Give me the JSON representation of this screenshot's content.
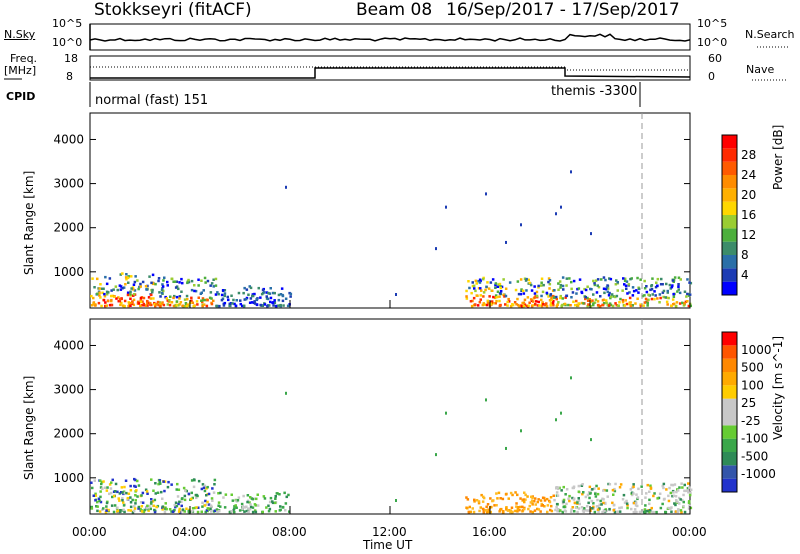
{
  "header": {
    "station": "Stokkseyri (fitACF)",
    "beam": "Beam 08",
    "date_range": "16/Sep/2017 - 17/Sep/2017"
  },
  "top_panels": {
    "nsky_label": "N.Sky",
    "nsky_ticks": [
      "10^5",
      "10^0"
    ],
    "nsearch_label": "N.Search",
    "nsearch_ticks": [
      "10^5",
      "10^0"
    ],
    "freq_label": "Freq.",
    "freq_unit": "[MHz]",
    "freq_ticks": [
      "18",
      "8"
    ],
    "nave_label": "Nave",
    "nave_ticks": [
      "60",
      "0"
    ],
    "cpid_label": "CPID",
    "cpid_modes": [
      {
        "name": "normal (fast) 151",
        "start_hour": 0
      },
      {
        "name": "themis -3300",
        "start_hour": 22
      }
    ]
  },
  "chart_data": [
    {
      "type": "heatmap",
      "title": "",
      "ylabel": "Slant Range [km]",
      "xlabel": "",
      "x_range_hours": [
        0,
        24
      ],
      "ylim": [
        180,
        4600
      ],
      "yticks": [
        1000,
        2000,
        3000,
        4000
      ],
      "colorbar": {
        "label": "Power [dB]",
        "ticks": [
          "4",
          "8",
          "12",
          "16",
          "20",
          "24",
          "28"
        ],
        "colors": [
          "#0000ff",
          "#1c3cb4",
          "#2a6fa8",
          "#3c8c6a",
          "#4caf3c",
          "#9acd32",
          "#ffd700",
          "#ffb000",
          "#ff8c00",
          "#ff5a00",
          "#ff2a00",
          "#ff0000"
        ]
      },
      "scatter_regions": [
        {
          "hours": [
            0,
            2.5
          ],
          "range_km": [
            250,
            1000
          ],
          "level": "mixed-high"
        },
        {
          "hours": [
            2.5,
            5
          ],
          "range_km": [
            250,
            900
          ],
          "level": "mixed"
        },
        {
          "hours": [
            5,
            8
          ],
          "range_km": [
            250,
            700
          ],
          "level": "low"
        },
        {
          "hours": [
            15,
            18.5
          ],
          "range_km": [
            250,
            900
          ],
          "level": "mixed-high"
        },
        {
          "hours": [
            18.5,
            24
          ],
          "range_km": [
            250,
            900
          ],
          "level": "mixed"
        }
      ]
    },
    {
      "type": "heatmap",
      "title": "",
      "ylabel": "Slant Range [km]",
      "xlabel": "Time UT",
      "x_range_hours": [
        0,
        24
      ],
      "ylim": [
        180,
        4600
      ],
      "yticks": [
        1000,
        2000,
        3000,
        4000
      ],
      "colorbar": {
        "label": "Velocity [m s^-1]",
        "ticks": [
          "1000",
          "500",
          "100",
          "25",
          "-25",
          "-100",
          "-500",
          "-1000"
        ],
        "colors": [
          "#2233cc",
          "#3355aa",
          "#2e8b57",
          "#3aa74a",
          "#66cc33",
          "#c8c8c8",
          "#c8c8c8",
          "#ffcc00",
          "#ffaa00",
          "#ff8800",
          "#ff5500",
          "#ff0000"
        ]
      },
      "scatter_regions": [
        {
          "hours": [
            0,
            5
          ],
          "range_km": [
            250,
            1000
          ],
          "level": "green-mixed"
        },
        {
          "hours": [
            5,
            8
          ],
          "range_km": [
            250,
            700
          ],
          "level": "green"
        },
        {
          "hours": [
            15,
            18.5
          ],
          "range_km": [
            250,
            700
          ],
          "level": "orange"
        },
        {
          "hours": [
            18.5,
            24
          ],
          "range_km": [
            250,
            900
          ],
          "level": "grey-green"
        }
      ]
    }
  ],
  "x_axis": {
    "ticks": [
      "00:00",
      "04:00",
      "08:00",
      "12:00",
      "16:00",
      "20:00",
      "00:00"
    ],
    "label": "Time UT"
  }
}
